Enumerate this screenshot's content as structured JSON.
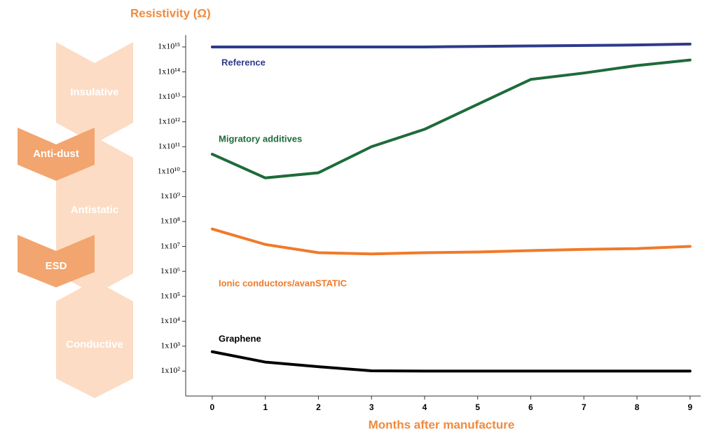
{
  "chart_data": {
    "type": "line",
    "title": "Resistivity (Ω)",
    "xlabel": "Months after manufacture",
    "zones": [
      "Insulative",
      "Anti-dust",
      "Antistatic",
      "ESD",
      "Conductive"
    ],
    "x": [
      0,
      1,
      2,
      3,
      4,
      5,
      6,
      7,
      8,
      9
    ],
    "xlim": [
      -0.5,
      9.2
    ],
    "xticks": [
      0,
      1,
      2,
      3,
      4,
      5,
      6,
      7,
      8,
      9
    ],
    "ylim": [
      10,
      3000000000000000
    ],
    "yscale": "log",
    "yticks": [
      {
        "value": 100,
        "label": "1x10²"
      },
      {
        "value": 1000,
        "label": "1x10³"
      },
      {
        "value": 10000,
        "label": "1x10⁴"
      },
      {
        "value": 100000,
        "label": "1x10⁵"
      },
      {
        "value": 1000000,
        "label": "1x10⁶"
      },
      {
        "value": 10000000,
        "label": "1x10⁷"
      },
      {
        "value": 100000000,
        "label": "1x10⁸"
      },
      {
        "value": 1000000000,
        "label": "1x10⁹"
      },
      {
        "value": 10000000000,
        "label": "1x10¹⁰"
      },
      {
        "value": 100000000000,
        "label": "1x10¹¹"
      },
      {
        "value": 1000000000000,
        "label": "1x10¹²"
      },
      {
        "value": 10000000000000,
        "label": "1x10¹³"
      },
      {
        "value": 100000000000000,
        "label": "1x10¹⁴"
      },
      {
        "value": 1000000000000000,
        "label": "1x10¹⁵"
      }
    ],
    "series": [
      {
        "name": "Reference",
        "color": "#2e3a8c",
        "values": [
          1000000000000000,
          1000000000000000,
          1000000000000000,
          1000000000000000,
          1000000000000000,
          1050000000000000,
          1100000000000000,
          1150000000000000,
          1200000000000000,
          1300000000000000
        ]
      },
      {
        "name": "Migratory additives",
        "color": "#1e6b3a",
        "values": [
          50000000000,
          5600000000,
          9000000000,
          100000000000,
          500000000000,
          5000000000000,
          50000000000000,
          90000000000000,
          180000000000000,
          300000000000000
        ]
      },
      {
        "name": "Ionic conductors/avanSTATIC",
        "color": "#f07a2a",
        "values": [
          50000000,
          12000000,
          5600000,
          5000000,
          5600000,
          6000000,
          6800000,
          7600000,
          8200000,
          10000000
        ]
      },
      {
        "name": "Graphene",
        "color": "#000000",
        "values": [
          600,
          230,
          150,
          103,
          100,
          100,
          100,
          100,
          100,
          100
        ]
      }
    ]
  }
}
